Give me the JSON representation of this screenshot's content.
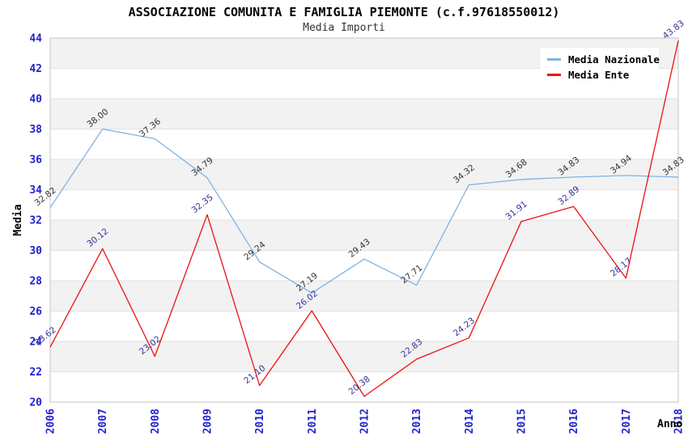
{
  "title": "ASSOCIAZIONE COMUNITA E FAMIGLIA PIEMONTE (c.f.97618550012)",
  "subtitle": "Media Importi",
  "chart_data": {
    "type": "line",
    "title": "ASSOCIAZIONE COMUNITA E FAMIGLIA PIEMONTE (c.f.97618550012)",
    "subtitle": "Media Importi",
    "xlabel": "Anno",
    "ylabel": "Media",
    "x": [
      2006,
      2007,
      2008,
      2009,
      2010,
      2011,
      2012,
      2013,
      2014,
      2015,
      2016,
      2017,
      2018
    ],
    "series": [
      {
        "name": "Media Nazionale",
        "color": "#7fb2e5",
        "label_color": "#333333",
        "values": [
          32.82,
          38.0,
          37.36,
          34.79,
          29.24,
          27.19,
          29.43,
          27.71,
          34.32,
          34.68,
          34.83,
          34.94,
          34.83
        ]
      },
      {
        "name": "Media Ente",
        "color": "#ee1111",
        "label_color": "#333399",
        "values": [
          23.62,
          30.12,
          23.02,
          32.35,
          21.1,
          26.02,
          20.38,
          22.83,
          24.23,
          31.91,
          32.89,
          28.17,
          43.83
        ]
      }
    ],
    "ylim": [
      20,
      44
    ],
    "ytick_step": 2,
    "yticks": [
      20,
      22,
      24,
      26,
      28,
      30,
      32,
      34,
      36,
      38,
      40,
      42,
      44
    ],
    "grid": "horizontal-alternating-bands",
    "legend_position": "top-right",
    "point_labels": "two-decimal values rotated above each point"
  },
  "colors": {
    "tick_label": "#2222cc",
    "band_gray": "#f2f2f2",
    "band_white": "#ffffff",
    "band_separator": "#e2e2e2",
    "plot_border": "#c4c4c4",
    "axis_title": "#000000",
    "national_series": "#7fb2e5",
    "entity_series": "#ee1111"
  },
  "legend": {
    "items": [
      {
        "label": "Media Nazionale"
      },
      {
        "label": "Media Ente"
      }
    ]
  }
}
